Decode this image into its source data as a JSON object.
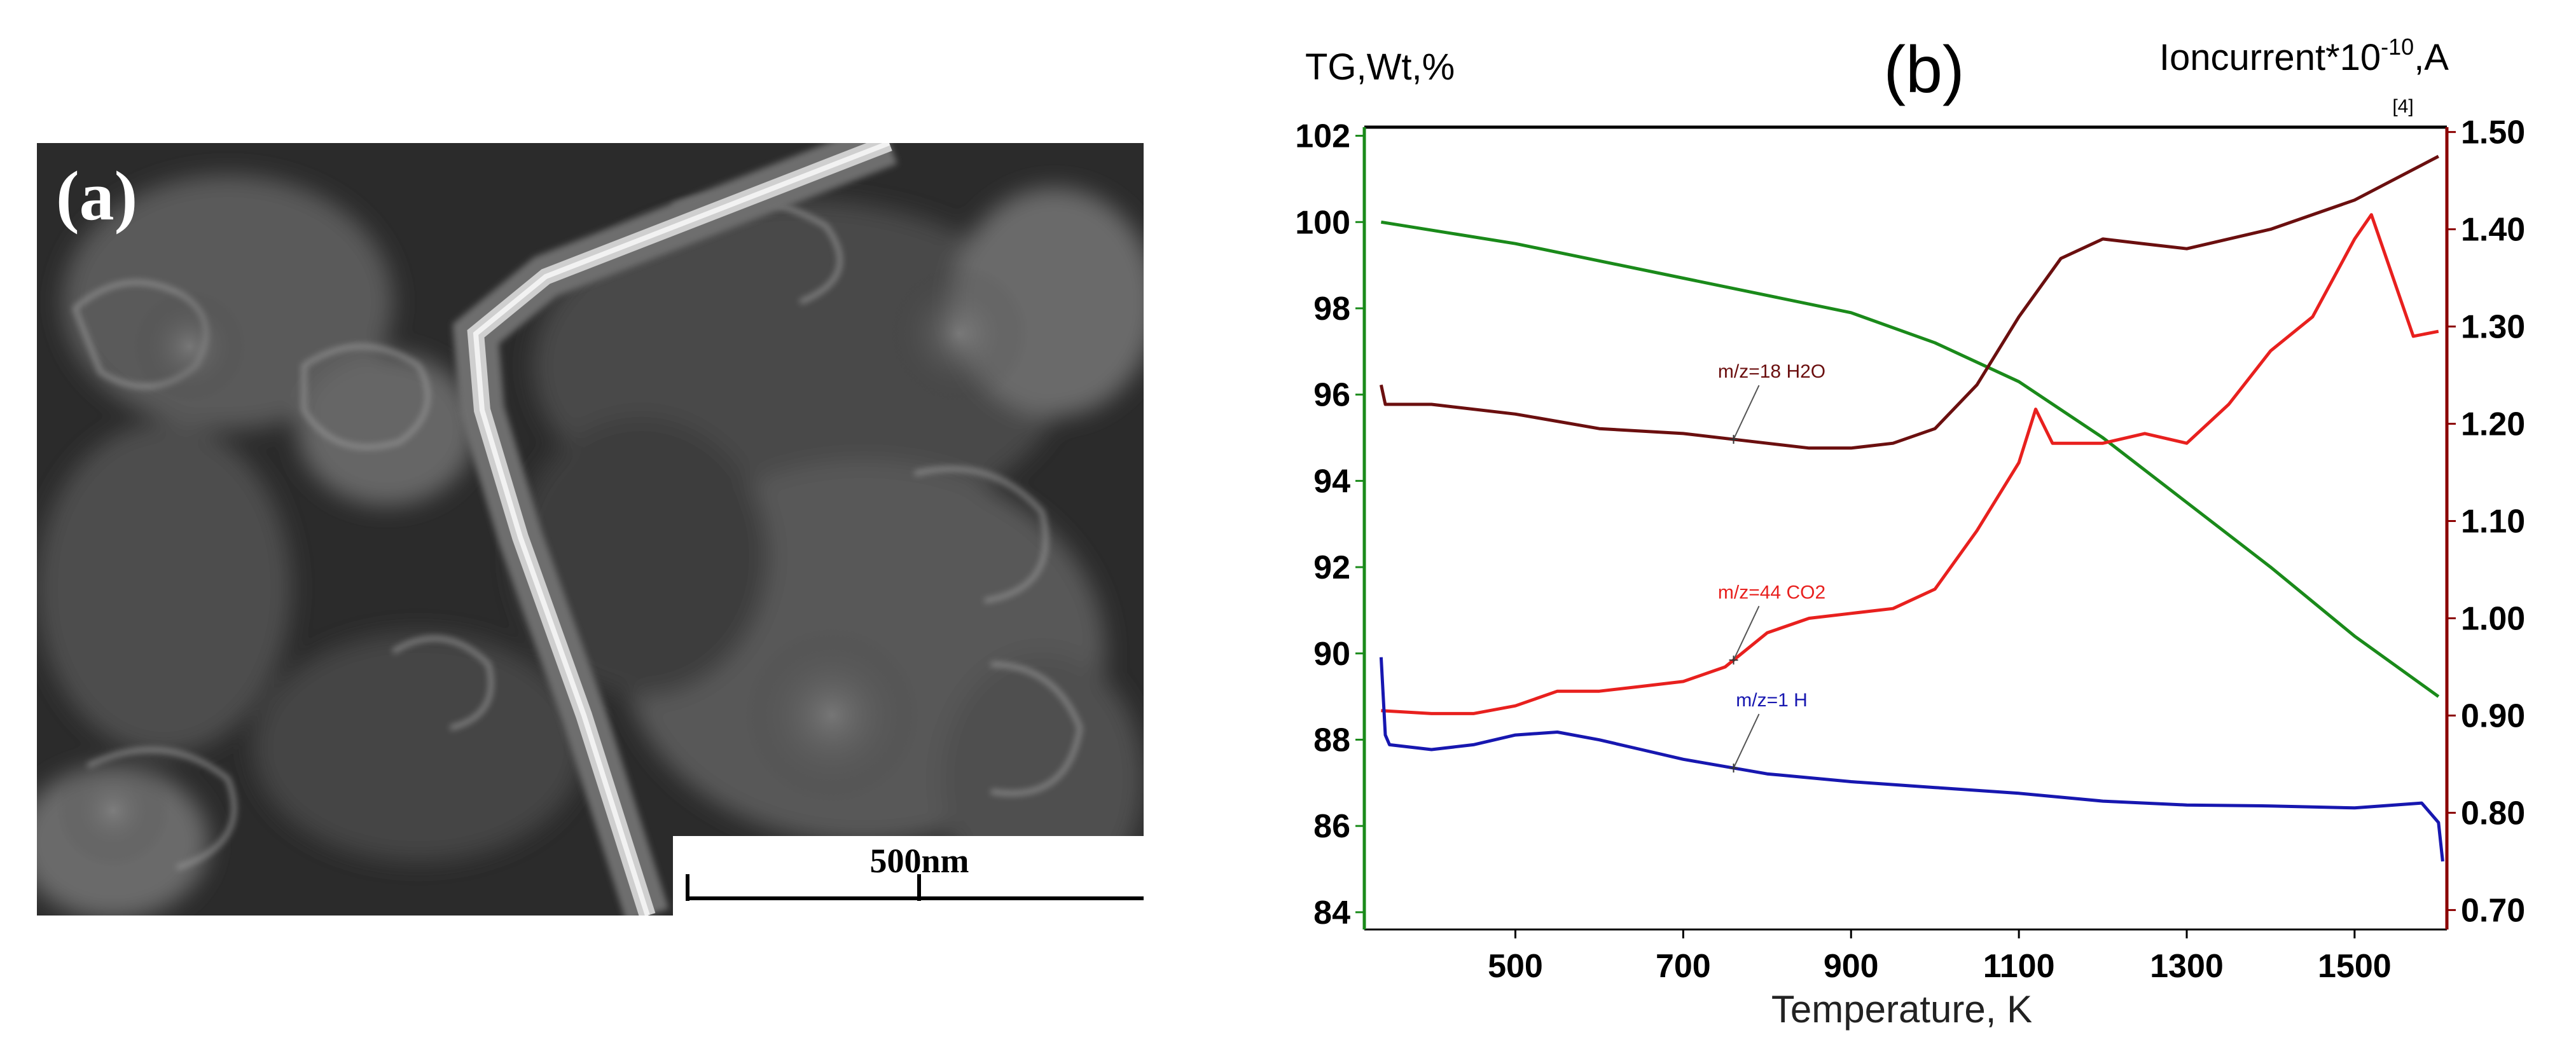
{
  "panel_a": {
    "label": "(a)",
    "scale_bar_label": "500nm"
  },
  "chart_data": {
    "type": "line",
    "panel_label": "(b)",
    "y_left_label": "TG,Wt,%",
    "y_right_label_main": "Ioncurrent*10",
    "y_right_label_exp": "-10",
    "y_right_label_unit": ",A",
    "right_axis_marker": "[4]",
    "xlabel": "Temperature, K",
    "xlim": [
      320,
      1610
    ],
    "ylim_left": [
      83.6,
      102.2
    ],
    "ylim_right": [
      0.68,
      1.505
    ],
    "x_ticks": [
      500,
      700,
      900,
      1100,
      1300,
      1500
    ],
    "y_left_ticks": [
      84,
      86,
      88,
      90,
      92,
      94,
      96,
      98,
      100,
      102
    ],
    "y_right_ticks": [
      "0.70",
      "0.80",
      "0.90",
      "1.00",
      "1.10",
      "1.20",
      "1.30",
      "1.40",
      "1.50"
    ],
    "colors": {
      "tg": "#1a8a1a",
      "h2o": "#6b0f0f",
      "co2": "#e8201e",
      "h": "#1717b0",
      "right_axis": "#8b0000"
    },
    "series": [
      {
        "name": "TG",
        "axis": "left",
        "color": "#1a8a1a",
        "x": [
          340,
          500,
          700,
          900,
          1000,
          1100,
          1200,
          1300,
          1400,
          1500,
          1600
        ],
        "y": [
          100.0,
          99.5,
          98.7,
          97.9,
          97.2,
          96.3,
          95.0,
          93.5,
          92.0,
          90.4,
          89.0
        ]
      },
      {
        "name": "m/z=18 H2O",
        "axis": "right",
        "color": "#6b0f0f",
        "x": [
          340,
          345,
          400,
          500,
          600,
          700,
          800,
          850,
          900,
          950,
          1000,
          1050,
          1100,
          1150,
          1200,
          1250,
          1300,
          1400,
          1500,
          1600
        ],
        "y": [
          1.24,
          1.22,
          1.22,
          1.21,
          1.195,
          1.19,
          1.18,
          1.175,
          1.175,
          1.18,
          1.195,
          1.24,
          1.31,
          1.37,
          1.39,
          1.385,
          1.38,
          1.4,
          1.43,
          1.475
        ]
      },
      {
        "name": "m/z=44 CO2",
        "axis": "right",
        "color": "#e8201e",
        "x": [
          340,
          400,
          450,
          500,
          550,
          600,
          650,
          700,
          750,
          800,
          850,
          900,
          950,
          1000,
          1050,
          1100,
          1120,
          1140,
          1160,
          1200,
          1250,
          1300,
          1350,
          1400,
          1450,
          1500,
          1520,
          1550,
          1570,
          1600
        ],
        "y": [
          0.905,
          0.902,
          0.902,
          0.91,
          0.925,
          0.925,
          0.93,
          0.935,
          0.95,
          0.985,
          1.0,
          1.005,
          1.01,
          1.03,
          1.09,
          1.16,
          1.215,
          1.18,
          1.18,
          1.18,
          1.19,
          1.18,
          1.22,
          1.275,
          1.31,
          1.39,
          1.415,
          1.34,
          1.29,
          1.295
        ]
      },
      {
        "name": "m/z=1 H",
        "axis": "right",
        "color": "#1717b0",
        "x": [
          340,
          345,
          350,
          400,
          450,
          500,
          550,
          600,
          650,
          700,
          800,
          900,
          1000,
          1100,
          1200,
          1300,
          1400,
          1500,
          1580,
          1600,
          1605
        ],
        "y": [
          0.96,
          0.88,
          0.87,
          0.865,
          0.87,
          0.88,
          0.883,
          0.875,
          0.865,
          0.855,
          0.84,
          0.832,
          0.826,
          0.82,
          0.812,
          0.808,
          0.807,
          0.805,
          0.81,
          0.79,
          0.75
        ]
      }
    ],
    "annotations": [
      {
        "text": "m/z=18 H2O",
        "series": "m/z=18 H2O",
        "at_x": 760
      },
      {
        "text": "m/z=44 CO2",
        "series": "m/z=44 CO2",
        "at_x": 760
      },
      {
        "text": "m/z=1 H",
        "series": "m/z=1 H",
        "at_x": 760
      }
    ]
  }
}
